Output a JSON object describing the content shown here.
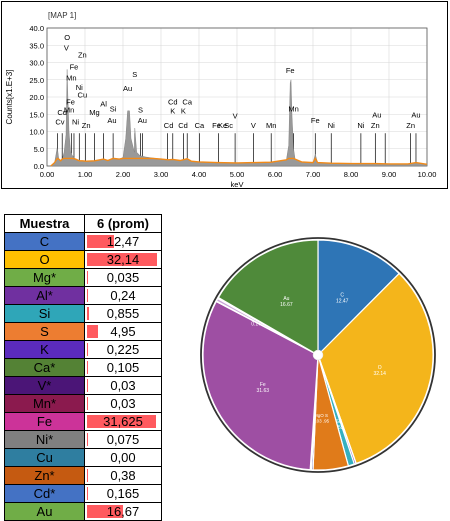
{
  "spectrum": {
    "map_label": "[MAP 1]",
    "ylabel": "Counts[x1.E+3]",
    "xlabel": "keV",
    "chart_data": {
      "type": "area",
      "xlim": [
        0,
        10
      ],
      "ylim": [
        0,
        40
      ],
      "x_ticks": [
        "0.00",
        "1.00",
        "2.00",
        "3.00",
        "4.00",
        "5.00",
        "6.00",
        "7.00",
        "8.00",
        "9.00",
        "10.00"
      ],
      "y_ticks": [
        "0.0",
        "5.0",
        "10.0",
        "15.0",
        "20.0",
        "25.0",
        "30.0",
        "35.0",
        "40.0"
      ],
      "grid": true,
      "series": [
        {
          "points": [
            [
              0.1,
              0
            ],
            [
              0.2,
              1.0
            ],
            [
              0.27,
              5.5
            ],
            [
              0.31,
              2.0
            ],
            [
              0.36,
              1.5
            ],
            [
              0.4,
              2.0
            ],
            [
              0.45,
              4.0
            ],
            [
              0.5,
              9.0
            ],
            [
              0.53,
              28.0
            ],
            [
              0.55,
              20.0
            ],
            [
              0.58,
              10.0
            ],
            [
              0.62,
              4.0
            ],
            [
              0.68,
              2.8
            ],
            [
              0.75,
              2.0
            ],
            [
              0.85,
              1.5
            ],
            [
              0.93,
              1.5
            ],
            [
              1.03,
              1.4
            ],
            [
              1.25,
              1.5
            ],
            [
              1.49,
              2.0
            ],
            [
              1.6,
              1.6
            ],
            [
              1.74,
              2.2
            ],
            [
              1.9,
              2.0
            ],
            [
              2.0,
              2.5
            ],
            [
              2.07,
              8.0
            ],
            [
              2.12,
              16.0
            ],
            [
              2.17,
              16.0
            ],
            [
              2.21,
              8.0
            ],
            [
              2.3,
              4.0
            ],
            [
              2.31,
              11.0
            ],
            [
              2.36,
              4.0
            ],
            [
              2.45,
              3.0
            ],
            [
              2.6,
              2.6
            ],
            [
              2.8,
              2.3
            ],
            [
              3.0,
              2.0
            ],
            [
              3.2,
              1.8
            ],
            [
              3.31,
              1.9
            ],
            [
              3.5,
              1.6
            ],
            [
              3.69,
              2.1
            ],
            [
              3.8,
              1.4
            ],
            [
              4.0,
              1.2
            ],
            [
              4.5,
              1.0
            ],
            [
              5.0,
              0.9
            ],
            [
              5.41,
              1.0
            ],
            [
              5.9,
              1.1
            ],
            [
              6.3,
              1.8
            ],
            [
              6.36,
              6.0
            ],
            [
              6.4,
              24.0
            ],
            [
              6.42,
              25.0
            ],
            [
              6.45,
              14.0
            ],
            [
              6.49,
              5.0
            ],
            [
              6.53,
              2.0
            ],
            [
              6.7,
              1.2
            ],
            [
              7.0,
              1.0
            ],
            [
              7.06,
              3.4
            ],
            [
              7.12,
              1.0
            ],
            [
              7.48,
              0.8
            ],
            [
              8.04,
              0.7
            ],
            [
              8.63,
              0.7
            ],
            [
              9.0,
              0.6
            ],
            [
              9.5,
              0.6
            ],
            [
              9.71,
              1.0
            ],
            [
              10.0,
              0.5
            ]
          ]
        }
      ],
      "peak_labels": [
        {
          "text": "O",
          "x": 0.53,
          "y": 36.5
        },
        {
          "text": "V",
          "x": 0.51,
          "y": 33.5
        },
        {
          "text": "Zn",
          "x": 0.93,
          "y": 31.5
        },
        {
          "text": "Fe",
          "x": 0.71,
          "y": 28.0
        },
        {
          "text": "Mn",
          "x": 0.64,
          "y": 24.8
        },
        {
          "text": "Cd",
          "x": 0.4,
          "y": 14.8
        },
        {
          "text": "Ni",
          "x": 0.85,
          "y": 22.0
        },
        {
          "text": "Cu",
          "x": 0.93,
          "y": 19.8
        },
        {
          "text": "Fe",
          "x": 0.62,
          "y": 17.8
        },
        {
          "text": "Mn",
          "x": 0.58,
          "y": 15.5
        },
        {
          "text": "Cv",
          "x": 0.34,
          "y": 12.0
        },
        {
          "text": "Ni",
          "x": 0.75,
          "y": 12.0
        },
        {
          "text": "Zn",
          "x": 1.03,
          "y": 11.0
        },
        {
          "text": "Al",
          "x": 1.49,
          "y": 17.2
        },
        {
          "text": "Mg",
          "x": 1.25,
          "y": 14.8
        },
        {
          "text": "Si",
          "x": 1.74,
          "y": 15.8
        },
        {
          "text": "Au",
          "x": 1.71,
          "y": 12.5
        },
        {
          "text": "Au",
          "x": 2.12,
          "y": 21.8
        },
        {
          "text": "S",
          "x": 2.31,
          "y": 25.8
        },
        {
          "text": "S",
          "x": 2.46,
          "y": 15.5
        },
        {
          "text": "Au",
          "x": 2.51,
          "y": 12.5
        },
        {
          "text": "Cd",
          "x": 3.31,
          "y": 17.8
        },
        {
          "text": "Ca",
          "x": 3.69,
          "y": 17.8
        },
        {
          "text": "K",
          "x": 3.31,
          "y": 15.2
        },
        {
          "text": "K",
          "x": 3.59,
          "y": 15.2
        },
        {
          "text": "Cd",
          "x": 3.2,
          "y": 11.0
        },
        {
          "text": "Cd",
          "x": 3.58,
          "y": 11.0
        },
        {
          "text": "Ca",
          "x": 4.01,
          "y": 11.0
        },
        {
          "text": "Fe",
          "x": 4.46,
          "y": 11.0
        },
        {
          "text": "Ke",
          "x": 4.62,
          "y": 11.0
        },
        {
          "text": "Sc",
          "x": 4.78,
          "y": 11.0
        },
        {
          "text": "V",
          "x": 4.95,
          "y": 13.8
        },
        {
          "text": "V",
          "x": 5.43,
          "y": 11.0
        },
        {
          "text": "Mn",
          "x": 5.9,
          "y": 11.0
        },
        {
          "text": "Fe",
          "x": 6.4,
          "y": 27.0
        },
        {
          "text": "Mn",
          "x": 6.49,
          "y": 15.8
        },
        {
          "text": "Fe",
          "x": 7.06,
          "y": 12.5
        },
        {
          "text": "Ni",
          "x": 7.48,
          "y": 11.0
        },
        {
          "text": "Ni",
          "x": 8.26,
          "y": 11.0
        },
        {
          "text": "Au",
          "x": 8.68,
          "y": 14.0
        },
        {
          "text": "Zn",
          "x": 8.64,
          "y": 11.0
        },
        {
          "text": "Au",
          "x": 9.71,
          "y": 14.0
        },
        {
          "text": "Zn",
          "x": 9.57,
          "y": 11.0
        }
      ],
      "marker_lines": [
        0.28,
        0.4,
        0.52,
        0.64,
        0.71,
        0.85,
        1.01,
        1.25,
        1.49,
        1.74,
        2.12,
        2.31,
        2.46,
        2.51,
        3.17,
        3.31,
        3.59,
        3.69,
        4.01,
        4.51,
        4.95,
        5.43,
        5.9,
        6.4,
        6.49,
        7.06,
        7.48,
        8.26,
        8.64,
        8.9,
        9.57,
        9.71
      ]
    }
  },
  "table": {
    "header_element": "Muestra",
    "header_value": "6 (prom)",
    "rows": [
      {
        "element": "C",
        "value": "12,47",
        "num": 12.47,
        "color": "#4472c4"
      },
      {
        "element": "O",
        "value": "32,14",
        "num": 32.14,
        "color": "#ffc000"
      },
      {
        "element": "Mg*",
        "value": "0,035",
        "num": 0.035,
        "color": "#70ad47"
      },
      {
        "element": "Al*",
        "value": "0,24",
        "num": 0.24,
        "color": "#7030a0"
      },
      {
        "element": "Si",
        "value": "0,855",
        "num": 0.855,
        "color": "#2fa6b8"
      },
      {
        "element": "S",
        "value": "4,95",
        "num": 4.95,
        "color": "#ed7d31"
      },
      {
        "element": "K",
        "value": "0,225",
        "num": 0.225,
        "color": "#5b2bbd"
      },
      {
        "element": "Ca*",
        "value": "0,105",
        "num": 0.105,
        "color": "#548235"
      },
      {
        "element": "V*",
        "value": "0,03",
        "num": 0.03,
        "color": "#4b1577"
      },
      {
        "element": "Mn*",
        "value": "0,03",
        "num": 0.03,
        "color": "#8b1a4e"
      },
      {
        "element": "Fe",
        "value": "31,625",
        "num": 31.625,
        "color": "#cc3399"
      },
      {
        "element": "Ni*",
        "value": "0,075",
        "num": 0.075,
        "color": "#808080"
      },
      {
        "element": "Cu",
        "value": "0,00",
        "num": 0.0,
        "color": "#2f7ea0"
      },
      {
        "element": "Zn*",
        "value": "0,38",
        "num": 0.38,
        "color": "#c55a11"
      },
      {
        "element": "Cd*",
        "value": "0,165",
        "num": 0.165,
        "color": "#4472c4"
      },
      {
        "element": "Au",
        "value": "16,67",
        "num": 16.67,
        "color": "#70ad47"
      }
    ],
    "bar_max": 33
  },
  "pie": {
    "chart_data": {
      "type": "pie",
      "slices": [
        {
          "label": "C",
          "value": 12.47,
          "text": "C\n12.47",
          "color": "#2e75b6"
        },
        {
          "label": "O",
          "value": 32.14,
          "text": "O\n32.14",
          "color": "#f4b51b"
        },
        {
          "label": "Mg",
          "value": 0.035,
          "text": "",
          "color": "#70ad47"
        },
        {
          "label": "Al",
          "value": 0.24,
          "text": "",
          "color": "#7030a0"
        },
        {
          "label": "Si",
          "value": 0.855,
          "text": "Si*\n.855",
          "color": "#35b0c0"
        },
        {
          "label": "S",
          "value": 4.95,
          "text": "",
          "color": "#e07b1a"
        },
        {
          "label": "K",
          "value": 0.225,
          "text": "",
          "color": "#3a3a9a"
        },
        {
          "label": "Ca",
          "value": 0.105,
          "text": "",
          "color": "#548235"
        },
        {
          "label": "V",
          "value": 0.03,
          "text": "",
          "color": "#4b1577"
        },
        {
          "label": "Mn",
          "value": 0.03,
          "text": "",
          "color": "#8b1a4e"
        },
        {
          "label": "Fe",
          "value": 31.625,
          "text": "Fe\n31.63",
          "color": "#9e4fa3"
        },
        {
          "label": "Ni",
          "value": 0.075,
          "text": "",
          "color": "#999999"
        },
        {
          "label": "Cu",
          "value": 0.0,
          "text": "",
          "color": "#2f7ea0"
        },
        {
          "label": "Zn",
          "value": 0.38,
          "text": "",
          "color": "#c8a6d8"
        },
        {
          "label": "Cd",
          "value": 0.165,
          "text": "Cd*\n0.17",
          "color": "#7aa7d6"
        },
        {
          "label": "Au",
          "value": 16.67,
          "text": "Au\n16.67",
          "color": "#4f8a3a"
        }
      ],
      "extra_labels": [
        "MgO S",
        "0.03 .95"
      ]
    }
  }
}
